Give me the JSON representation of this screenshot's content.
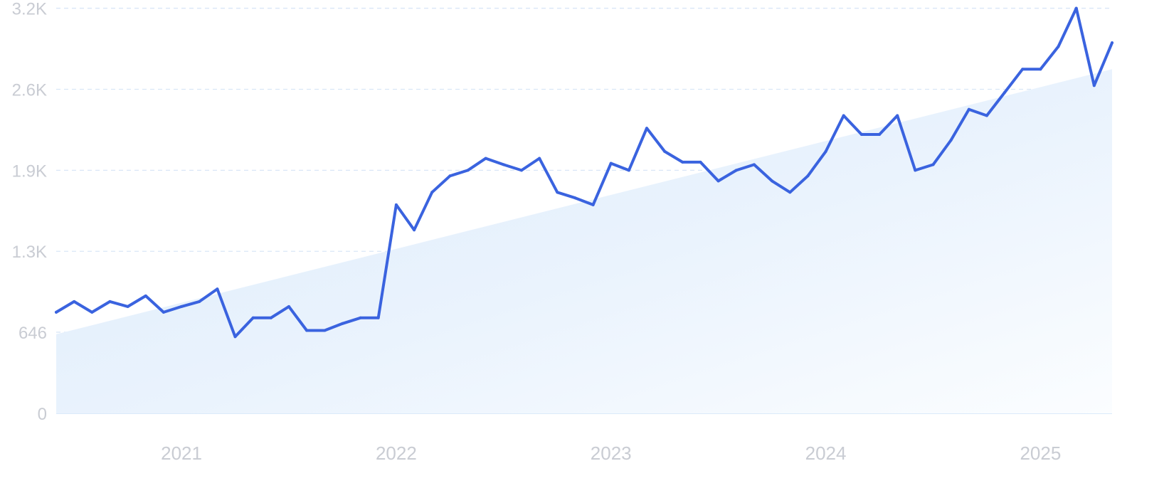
{
  "chart_data": {
    "type": "line",
    "grid": true,
    "legend": "none",
    "ylim": [
      0,
      3200
    ],
    "yticks": [
      {
        "value": 0,
        "label": "0"
      },
      {
        "value": 646,
        "label": "646"
      },
      {
        "value": 1290,
        "label": "1.3K"
      },
      {
        "value": 1935,
        "label": "1.9K"
      },
      {
        "value": 2580,
        "label": "2.6K"
      },
      {
        "value": 3225,
        "label": "3.2K"
      }
    ],
    "xlim": [
      "2020-06",
      "2025-05"
    ],
    "xticks": [
      {
        "value": "2021-01",
        "label": "2021"
      },
      {
        "value": "2022-01",
        "label": "2022"
      },
      {
        "value": "2023-01",
        "label": "2023"
      },
      {
        "value": "2024-01",
        "label": "2024"
      },
      {
        "value": "2025-01",
        "label": "2025"
      }
    ],
    "series": [
      {
        "type": "line",
        "color": "#3a63df",
        "x": [
          "2020-06",
          "2020-07",
          "2020-08",
          "2020-09",
          "2020-10",
          "2020-11",
          "2020-12",
          "2021-01",
          "2021-02",
          "2021-03",
          "2021-04",
          "2021-05",
          "2021-06",
          "2021-07",
          "2021-08",
          "2021-09",
          "2021-10",
          "2021-11",
          "2021-12",
          "2022-01",
          "2022-02",
          "2022-03",
          "2022-04",
          "2022-05",
          "2022-06",
          "2022-07",
          "2022-08",
          "2022-09",
          "2022-10",
          "2022-11",
          "2022-12",
          "2023-01",
          "2023-02",
          "2023-03",
          "2023-04",
          "2023-05",
          "2023-06",
          "2023-07",
          "2023-08",
          "2023-09",
          "2023-10",
          "2023-11",
          "2023-12",
          "2024-01",
          "2024-02",
          "2024-03",
          "2024-04",
          "2024-05",
          "2024-06",
          "2024-07",
          "2024-08",
          "2024-09",
          "2024-10",
          "2024-11",
          "2024-12",
          "2025-01",
          "2025-02",
          "2025-03",
          "2025-04",
          "2025-05"
        ],
        "values": [
          805,
          890,
          805,
          890,
          850,
          935,
          805,
          850,
          890,
          990,
          610,
          760,
          760,
          850,
          660,
          660,
          715,
          760,
          760,
          1660,
          1460,
          1760,
          1890,
          1935,
          2030,
          1980,
          1935,
          2030,
          1760,
          1715,
          1660,
          1990,
          1935,
          2270,
          2085,
          2000,
          2000,
          1850,
          1935,
          1980,
          1850,
          1760,
          1890,
          2085,
          2370,
          2220,
          2220,
          2370,
          1935,
          1980,
          2175,
          2420,
          2370,
          2555,
          2740,
          2740,
          2920,
          3225,
          2610,
          2950
        ]
      },
      {
        "type": "trend-area",
        "color": "#dcebfb",
        "x": [
          "2020-06",
          "2025-05"
        ],
        "values": [
          630,
          2740
        ]
      }
    ]
  }
}
